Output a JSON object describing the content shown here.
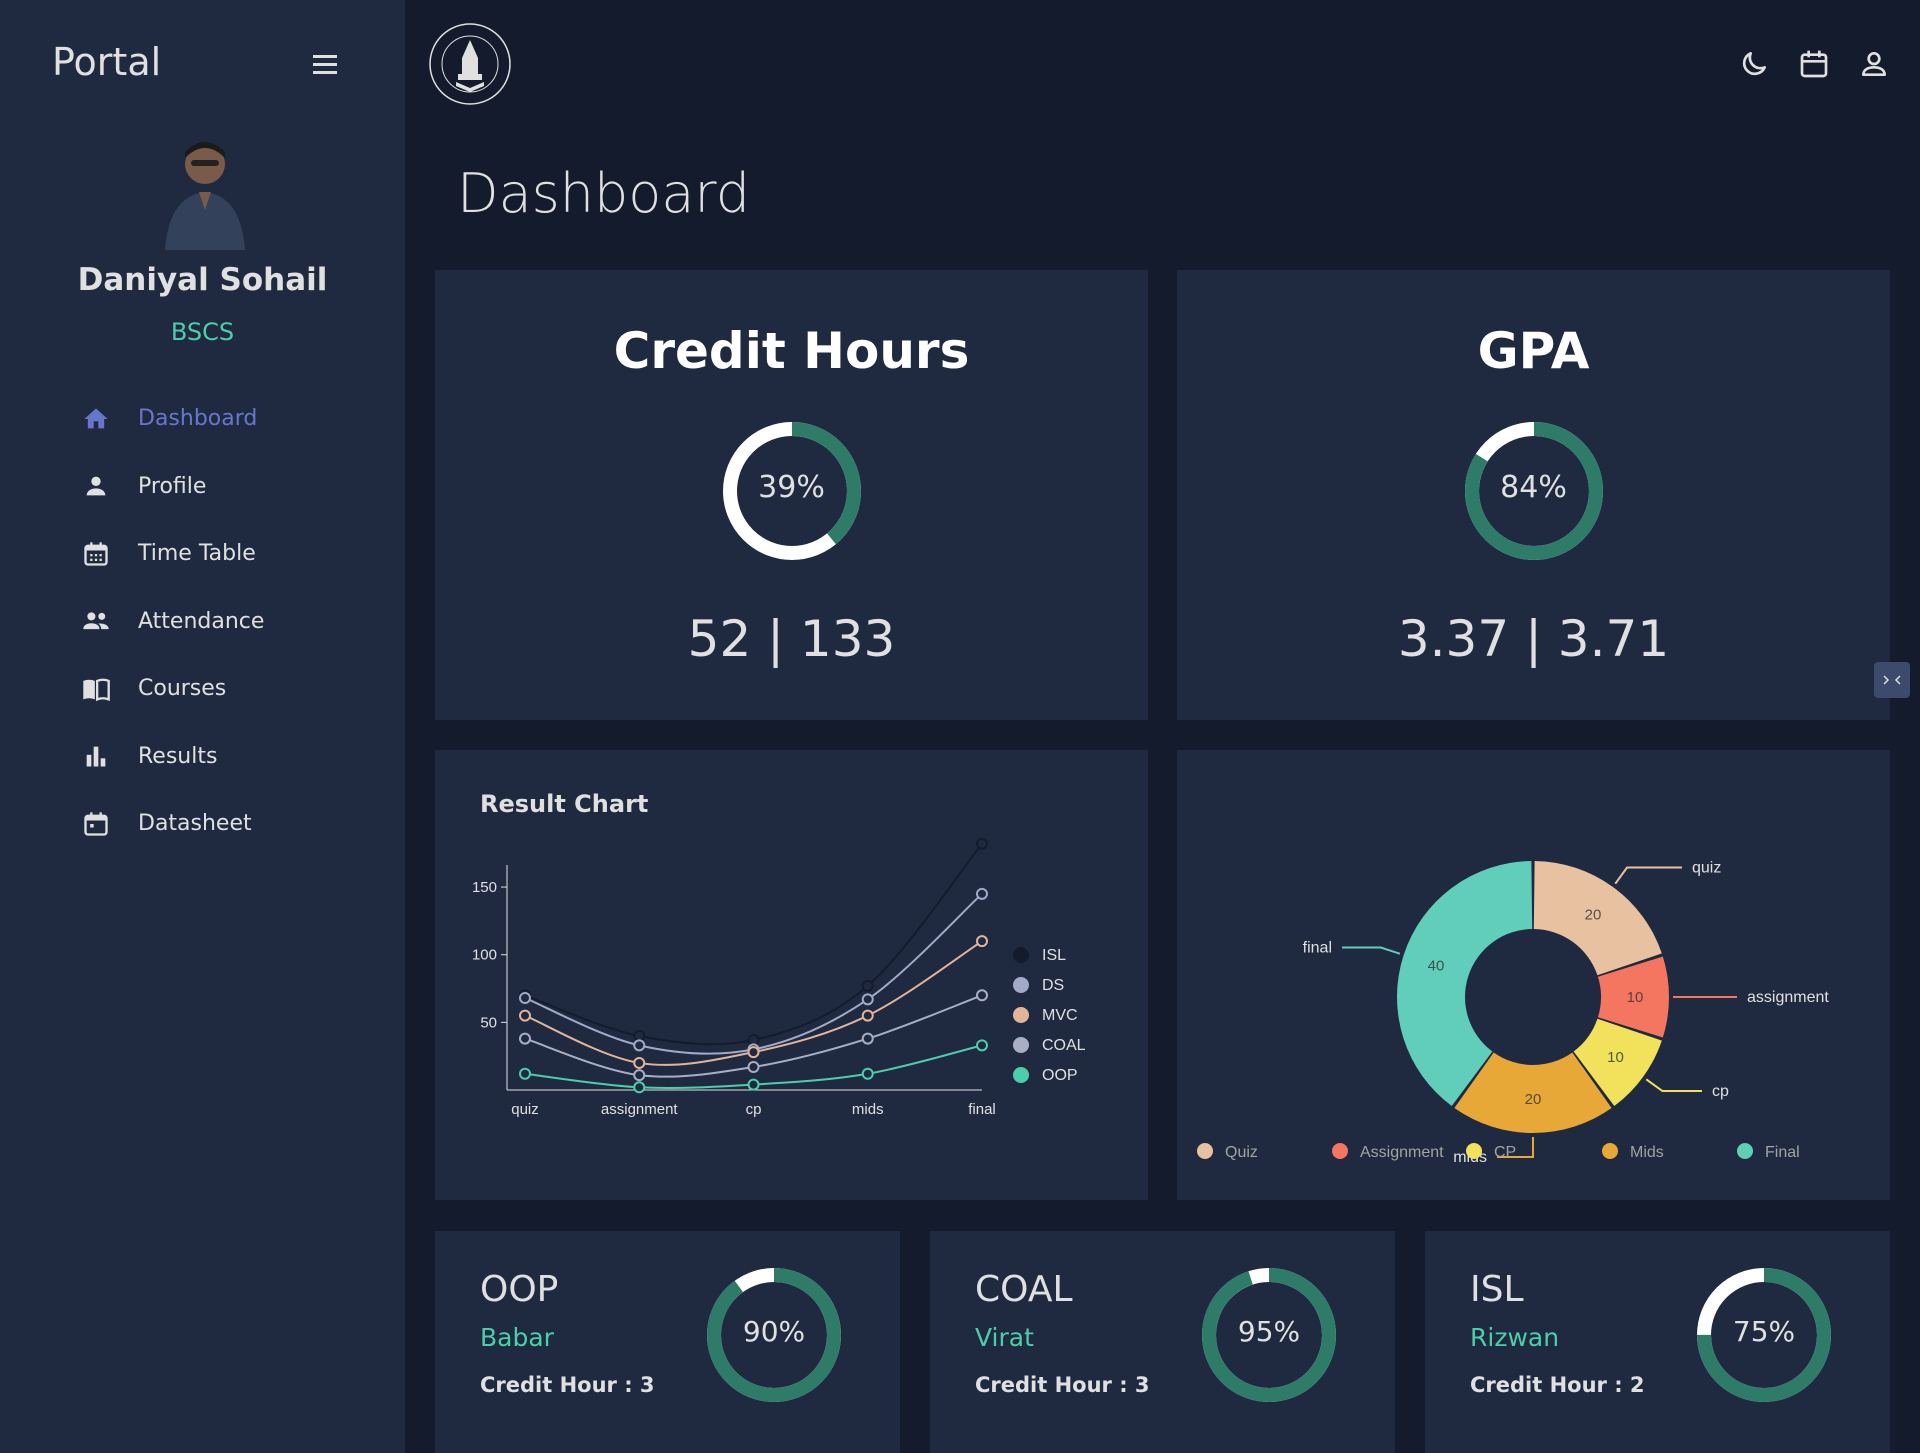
{
  "sidebar": {
    "brand": "Portal",
    "user_name": "Daniyal Sohail",
    "user_program": "BSCS",
    "items": [
      {
        "label": "Dashboard",
        "icon": "home-icon"
      },
      {
        "label": "Profile",
        "icon": "person-icon"
      },
      {
        "label": "Time Table",
        "icon": "calendar-grid-icon"
      },
      {
        "label": "Attendance",
        "icon": "people-icon"
      },
      {
        "label": "Courses",
        "icon": "book-icon"
      },
      {
        "label": "Results",
        "icon": "bar-chart-icon"
      },
      {
        "label": "Datasheet",
        "icon": "calendar-icon"
      }
    ]
  },
  "header": {
    "icons": [
      "moon-icon",
      "calendar-icon",
      "user-icon"
    ]
  },
  "page": {
    "title": "Dashboard"
  },
  "kpis": {
    "credit_hours": {
      "title": "Credit Hours",
      "percent_label": "39%",
      "percent": 39,
      "value": "52 | 133"
    },
    "gpa": {
      "title": "GPA",
      "percent_label": "84%",
      "percent": 84,
      "value": "3.37 | 3.71"
    }
  },
  "result_chart": {
    "title": "Result Chart"
  },
  "chart_data": [
    {
      "type": "line",
      "title": "Result Chart",
      "categories": [
        "quiz",
        "assignment",
        "cp",
        "mids",
        "final"
      ],
      "yticks": [
        50,
        100,
        150
      ],
      "ylim": [
        0,
        170
      ],
      "series": [
        {
          "name": "ISL",
          "color": "#141b2d",
          "values": [
            70,
            40,
            37,
            77,
            182
          ]
        },
        {
          "name": "DS",
          "color": "#a3a9c8",
          "values": [
            68,
            33,
            30,
            67,
            145
          ]
        },
        {
          "name": "MVC",
          "color": "#e2b49a",
          "values": [
            55,
            20,
            28,
            55,
            110
          ]
        },
        {
          "name": "COAL",
          "color": "#a9aec5",
          "values": [
            38,
            11,
            17,
            38,
            70
          ]
        },
        {
          "name": "OOP",
          "color": "#4cceac",
          "values": [
            12,
            2,
            4,
            12,
            33
          ]
        }
      ]
    },
    {
      "type": "pie",
      "labels": [
        "quiz",
        "assignment",
        "cp",
        "mids",
        "final"
      ],
      "legend": [
        "Quiz",
        "Assignment",
        "CP",
        "Mids",
        "Final"
      ],
      "values": [
        20,
        10,
        10,
        20,
        40
      ],
      "colors": [
        "#e8c1a0",
        "#f47560",
        "#f1e15b",
        "#e8a838",
        "#61cdbb"
      ]
    }
  ],
  "courses": [
    {
      "name": "OOP",
      "teacher": "Babar",
      "credit": "Credit Hour : 3",
      "percent_label": "90%",
      "percent": 90
    },
    {
      "name": "COAL",
      "teacher": "Virat",
      "credit": "Credit Hour : 3",
      "percent_label": "95%",
      "percent": 95
    },
    {
      "name": "ISL",
      "teacher": "Rizwan",
      "credit": "Credit Hour : 2",
      "percent_label": "75%",
      "percent": 75
    }
  ],
  "colors": {
    "accent": "#4cceac",
    "ring_progress": "#2e7c67",
    "ring_base": "#ffffff",
    "card": "#1f2a40",
    "background": "#141b2d"
  }
}
